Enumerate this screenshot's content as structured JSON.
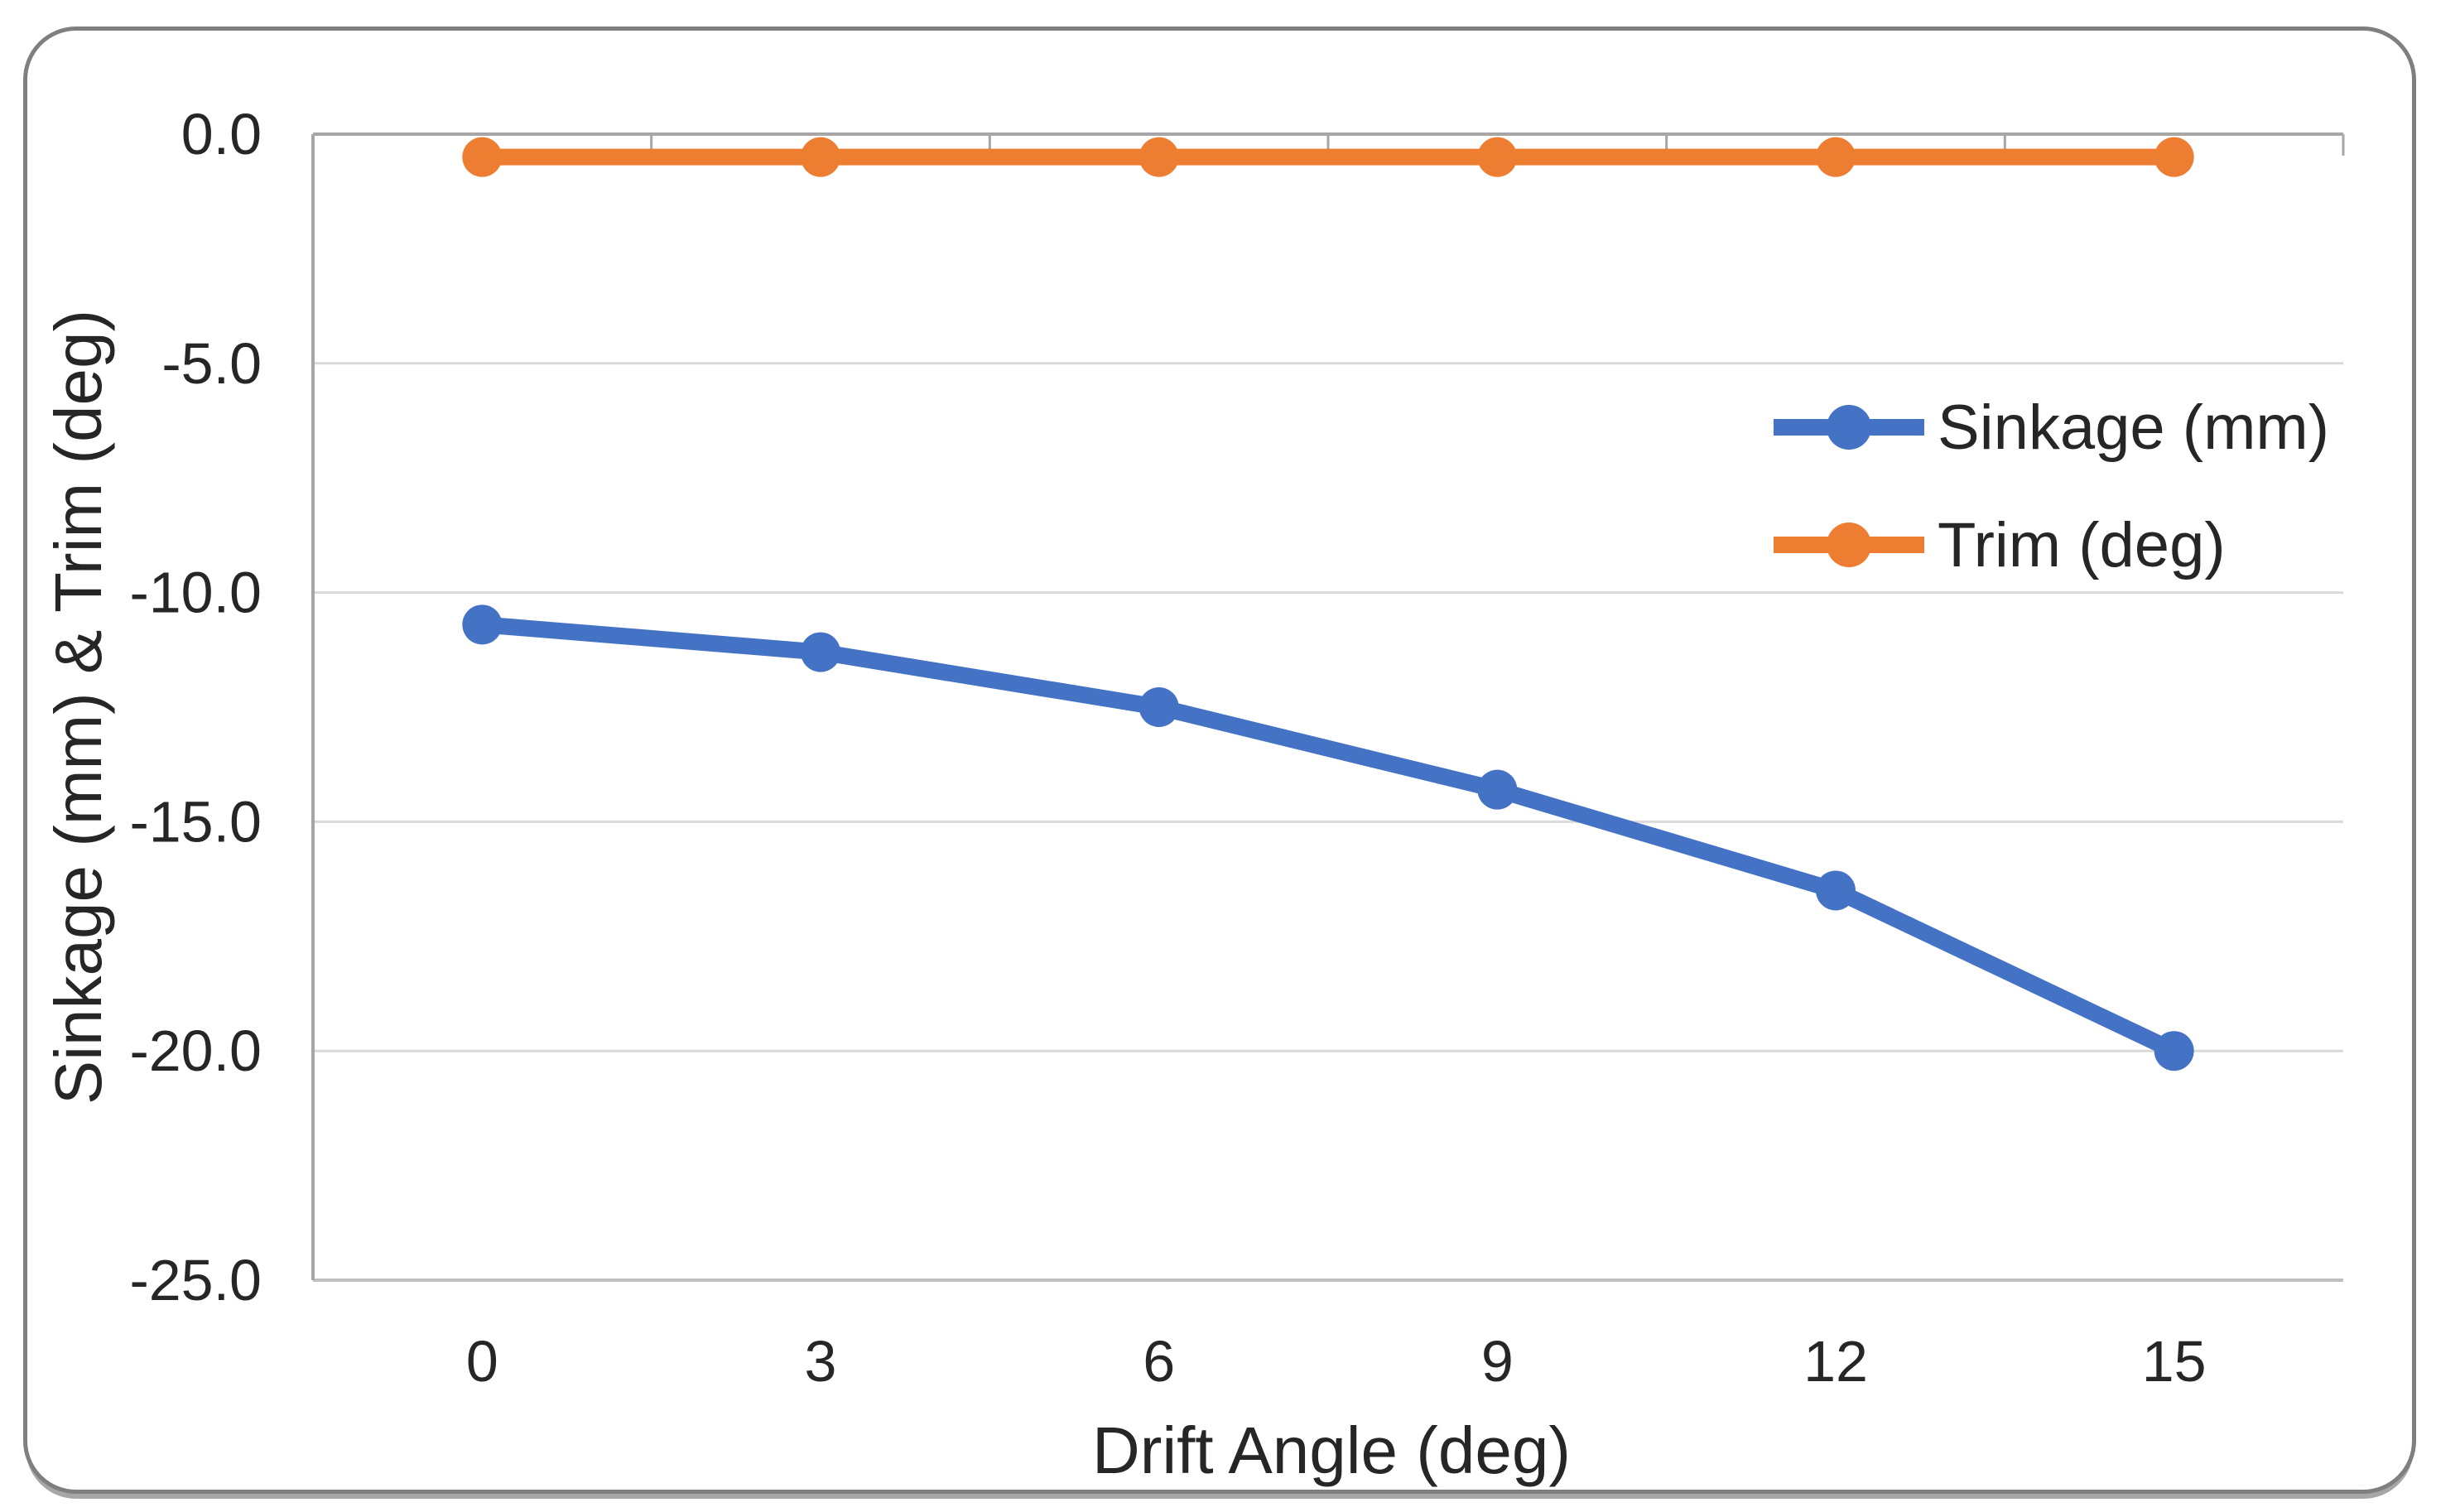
{
  "chart_data": {
    "type": "line",
    "categories": [
      0,
      3,
      6,
      9,
      12,
      15
    ],
    "series": [
      {
        "name": "Sinkage (mm)",
        "color": "#4472C4",
        "values": [
          -10.7,
          -11.3,
          -12.5,
          -14.3,
          -16.5,
          -20.0
        ]
      },
      {
        "name": "Trim (deg)",
        "color": "#ED7D31",
        "values": [
          -0.5,
          -0.5,
          -0.5,
          -0.5,
          -0.5,
          -0.5
        ]
      }
    ],
    "title": "",
    "xlabel": "Drift Angle (deg)",
    "ylabel": "Sinkage (mm) & Trim (deg)",
    "ylim": [
      -25,
      0
    ],
    "ytick_values": [
      0,
      -5,
      -10,
      -15,
      -20,
      -25
    ],
    "ytick_labels": [
      "0.0",
      "-5.0",
      "-10.0",
      "-15.0",
      "-20.0",
      "-25.0"
    ],
    "grid": true,
    "legend_position": "inside-right"
  },
  "colors": {
    "series_blue": "#4472C4",
    "series_orange": "#ED7D31",
    "gridline": "#D9D9D9",
    "axis_line": "#A6A6A6",
    "plot_bottom_line": "#BFBFBF",
    "text": "#262626",
    "frame_border": "#7F7F7F"
  }
}
